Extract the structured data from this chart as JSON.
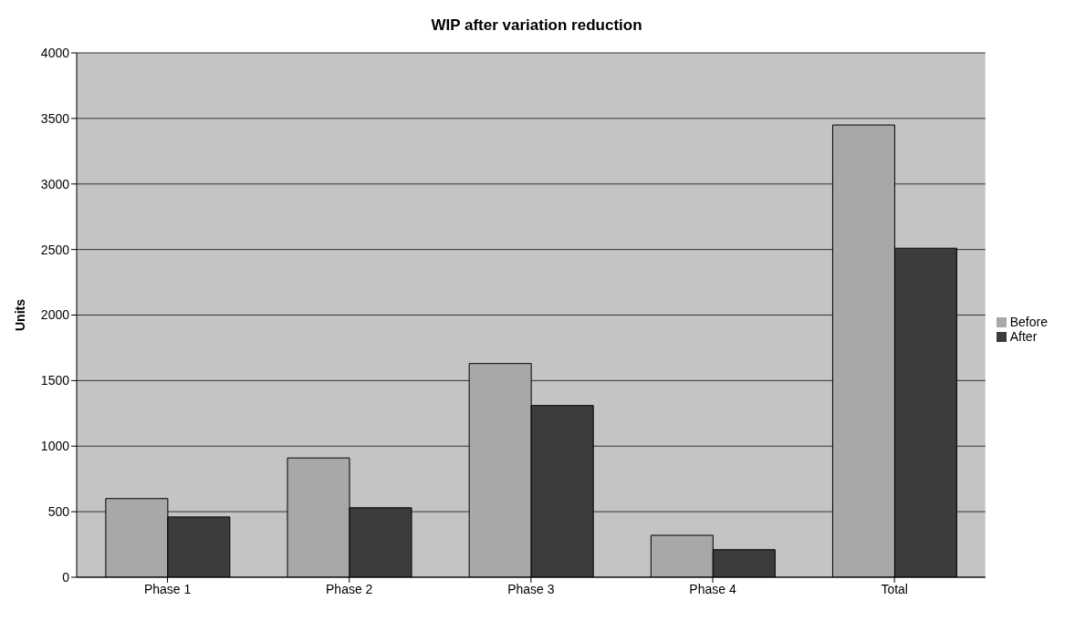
{
  "chart_data": {
    "type": "bar",
    "title": "WIP after variation reduction",
    "ylabel": "Units",
    "categories": [
      "Phase 1",
      "Phase 2",
      "Phase 3",
      "Phase 4",
      "Total"
    ],
    "series": [
      {
        "name": "Before",
        "color": "#a8a8a8",
        "values": [
          600,
          910,
          1630,
          320,
          3450
        ]
      },
      {
        "name": "After",
        "color": "#3c3c3c",
        "values": [
          460,
          530,
          1310,
          210,
          2510
        ]
      }
    ],
    "ylim": [
      0,
      4000
    ],
    "yticks": [
      0,
      500,
      1000,
      1500,
      2000,
      2500,
      3000,
      3500,
      4000
    ],
    "grid": "y",
    "legend": "right"
  }
}
